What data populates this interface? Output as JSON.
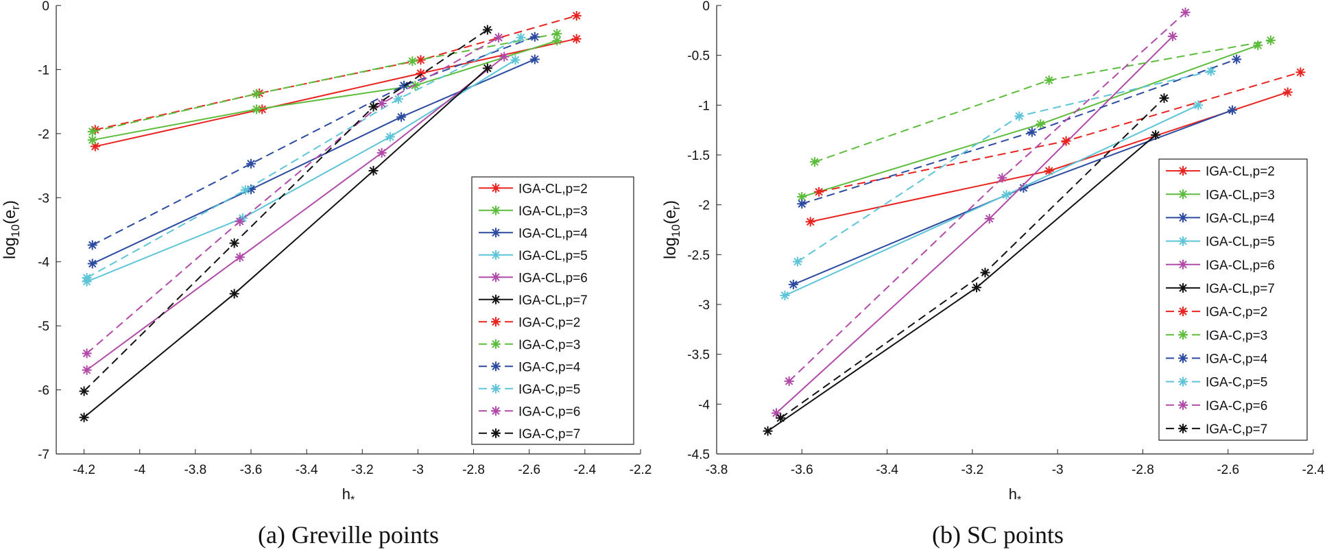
{
  "figure": {
    "captions": [
      "(a)  Greville points",
      "(b)  SC points"
    ]
  },
  "series_styles": [
    {
      "name": "IGA-CL,p=2",
      "color": "#e8231f",
      "dash": false
    },
    {
      "name": "IGA-CL,p=3",
      "color": "#5cbc3c",
      "dash": false
    },
    {
      "name": "IGA-CL,p=4",
      "color": "#2b4aa0",
      "dash": false
    },
    {
      "name": "IGA-CL,p=5",
      "color": "#5ec4d8",
      "dash": false
    },
    {
      "name": "IGA-CL,p=6",
      "color": "#b049a8",
      "dash": false
    },
    {
      "name": "IGA-CL,p=7",
      "color": "#111111",
      "dash": false
    },
    {
      "name": "IGA-C,p=2",
      "color": "#e8231f",
      "dash": true
    },
    {
      "name": "IGA-C,p=3",
      "color": "#5cbc3c",
      "dash": true
    },
    {
      "name": "IGA-C,p=4",
      "color": "#2b4aa0",
      "dash": true
    },
    {
      "name": "IGA-C,p=5",
      "color": "#5ec4d8",
      "dash": true
    },
    {
      "name": "IGA-C,p=6",
      "color": "#b049a8",
      "dash": true
    },
    {
      "name": "IGA-C,p=7",
      "color": "#111111",
      "dash": true
    }
  ],
  "chart_data": [
    {
      "type": "line",
      "title": "",
      "caption": "(a)  Greville points",
      "xlabel": "h",
      "xlabel_sub": "*",
      "ylabel": "log",
      "ylabel_sub": "10",
      "ylabel_paren": "(e",
      "ylabel_sub2": "r",
      "ylabel_close": ")",
      "xlim": [
        -4.3,
        -2.2
      ],
      "ylim": [
        -7,
        0
      ],
      "xticks": [
        -4.2,
        -4,
        -3.8,
        -3.6,
        -3.4,
        -3.2,
        -3,
        -2.8,
        -2.6,
        -2.4,
        -2.2
      ],
      "xtick_labels": [
        "-4.2",
        "-4",
        "-3.8",
        "-3.6",
        "-3.4",
        "-3.2",
        "-3",
        "-2.8",
        "-2.6",
        "-2.4",
        "-2.2"
      ],
      "yticks": [
        -7,
        -6,
        -5,
        -4,
        -3,
        -2,
        -1,
        0
      ],
      "ytick_labels": [
        "-7",
        "-6",
        "-5",
        "-4",
        "-3",
        "-2",
        "-1",
        "0"
      ],
      "legend_position": "right",
      "series": [
        {
          "name": "IGA-CL,p=2",
          "x": [
            -4.16,
            -3.56,
            -2.99,
            -2.43
          ],
          "y": [
            -2.2,
            -1.62,
            -1.06,
            -0.52
          ]
        },
        {
          "name": "IGA-CL,p=3",
          "x": [
            -4.17,
            -3.58,
            -3.01,
            -2.5
          ],
          "y": [
            -2.1,
            -1.62,
            -1.25,
            -0.55
          ]
        },
        {
          "name": "IGA-CL,p=4",
          "x": [
            -4.17,
            -3.6,
            -3.06,
            -2.58
          ],
          "y": [
            -4.03,
            -2.87,
            -1.74,
            -0.84
          ]
        },
        {
          "name": "IGA-CL,p=5",
          "x": [
            -4.19,
            -3.63,
            -3.1,
            -2.65
          ],
          "y": [
            -4.31,
            -3.32,
            -2.05,
            -0.85
          ]
        },
        {
          "name": "IGA-CL,p=6",
          "x": [
            -4.19,
            -3.64,
            -3.13,
            -2.69
          ],
          "y": [
            -5.69,
            -3.93,
            -2.3,
            -0.8
          ]
        },
        {
          "name": "IGA-CL,p=7",
          "x": [
            -4.2,
            -3.66,
            -3.16,
            -2.75
          ],
          "y": [
            -6.43,
            -4.5,
            -2.58,
            -0.98
          ]
        },
        {
          "name": "IGA-C,p=2",
          "x": [
            -4.16,
            -3.57,
            -2.99,
            -2.43
          ],
          "y": [
            -1.94,
            -1.37,
            -0.85,
            -0.16
          ]
        },
        {
          "name": "IGA-C,p=3",
          "x": [
            -4.17,
            -3.58,
            -3.02,
            -2.5
          ],
          "y": [
            -1.97,
            -1.38,
            -0.87,
            -0.44
          ]
        },
        {
          "name": "IGA-C,p=4",
          "x": [
            -4.17,
            -3.6,
            -3.05,
            -2.58
          ],
          "y": [
            -3.74,
            -2.47,
            -1.25,
            -0.49
          ]
        },
        {
          "name": "IGA-C,p=5",
          "x": [
            -4.19,
            -3.62,
            -3.07,
            -2.63
          ],
          "y": [
            -4.25,
            -2.88,
            -1.46,
            -0.5
          ]
        },
        {
          "name": "IGA-C,p=6",
          "x": [
            -4.19,
            -3.64,
            -3.13,
            -2.71
          ],
          "y": [
            -5.43,
            -3.37,
            -1.53,
            -0.5
          ]
        },
        {
          "name": "IGA-C,p=7",
          "x": [
            -4.2,
            -3.66,
            -3.16,
            -2.75
          ],
          "y": [
            -6.02,
            -3.71,
            -1.58,
            -0.38
          ]
        }
      ]
    },
    {
      "type": "line",
      "title": "",
      "caption": "(b)  SC points",
      "xlabel": "h",
      "xlabel_sub": "*",
      "ylabel": "log",
      "ylabel_sub": "10",
      "ylabel_paren": "(e",
      "ylabel_sub2": "r",
      "ylabel_close": ")",
      "xlim": [
        -3.8,
        -2.4
      ],
      "ylim": [
        -4.5,
        0
      ],
      "xticks": [
        -3.8,
        -3.6,
        -3.4,
        -3.2,
        -3,
        -2.8,
        -2.6,
        -2.4
      ],
      "xtick_labels": [
        "-3.8",
        "-3.6",
        "-3.4",
        "-3.2",
        "-3",
        "-2.8",
        "-2.6",
        "-2.4"
      ],
      "yticks": [
        -4.5,
        -4,
        -3.5,
        -3,
        -2.5,
        -2,
        -1.5,
        -1,
        -0.5,
        0
      ],
      "ytick_labels": [
        "-4.5",
        "-4",
        "-3.5",
        "-3",
        "-2.5",
        "-2",
        "-1.5",
        "-1",
        "-0.5",
        "0"
      ],
      "legend_position": "right",
      "series": [
        {
          "name": "IGA-CL,p=2",
          "x": [
            -3.58,
            -3.02,
            -2.46
          ],
          "y": [
            -2.17,
            -1.66,
            -0.87
          ]
        },
        {
          "name": "IGA-CL,p=3",
          "x": [
            -3.6,
            -3.04,
            -2.53
          ],
          "y": [
            -1.92,
            -1.19,
            -0.4
          ]
        },
        {
          "name": "IGA-CL,p=4",
          "x": [
            -3.62,
            -3.08,
            -2.59
          ],
          "y": [
            -2.8,
            -1.83,
            -1.05
          ]
        },
        {
          "name": "IGA-CL,p=5",
          "x": [
            -3.64,
            -3.12,
            -2.67
          ],
          "y": [
            -2.91,
            -1.9,
            -1.0
          ]
        },
        {
          "name": "IGA-CL,p=6",
          "x": [
            -3.66,
            -3.16,
            -2.73
          ],
          "y": [
            -4.09,
            -2.14,
            -0.31
          ]
        },
        {
          "name": "IGA-CL,p=7",
          "x": [
            -3.68,
            -3.19,
            -2.77
          ],
          "y": [
            -4.27,
            -2.83,
            -1.3
          ]
        },
        {
          "name": "IGA-C,p=2",
          "x": [
            -3.56,
            -2.98,
            -2.43
          ],
          "y": [
            -1.87,
            -1.36,
            -0.67
          ]
        },
        {
          "name": "IGA-C,p=3",
          "x": [
            -3.57,
            -3.02,
            -2.5
          ],
          "y": [
            -1.57,
            -0.75,
            -0.35
          ]
        },
        {
          "name": "IGA-C,p=4",
          "x": [
            -3.6,
            -3.06,
            -2.58
          ],
          "y": [
            -1.99,
            -1.27,
            -0.54
          ]
        },
        {
          "name": "IGA-C,p=5",
          "x": [
            -3.61,
            -3.09,
            -2.64
          ],
          "y": [
            -2.57,
            -1.11,
            -0.66
          ]
        },
        {
          "name": "IGA-C,p=6",
          "x": [
            -3.63,
            -3.13,
            -2.7
          ],
          "y": [
            -3.77,
            -1.73,
            -0.07
          ]
        },
        {
          "name": "IGA-C,p=7",
          "x": [
            -3.65,
            -3.17,
            -2.75
          ],
          "y": [
            -4.14,
            -2.68,
            -0.93
          ]
        }
      ]
    }
  ]
}
